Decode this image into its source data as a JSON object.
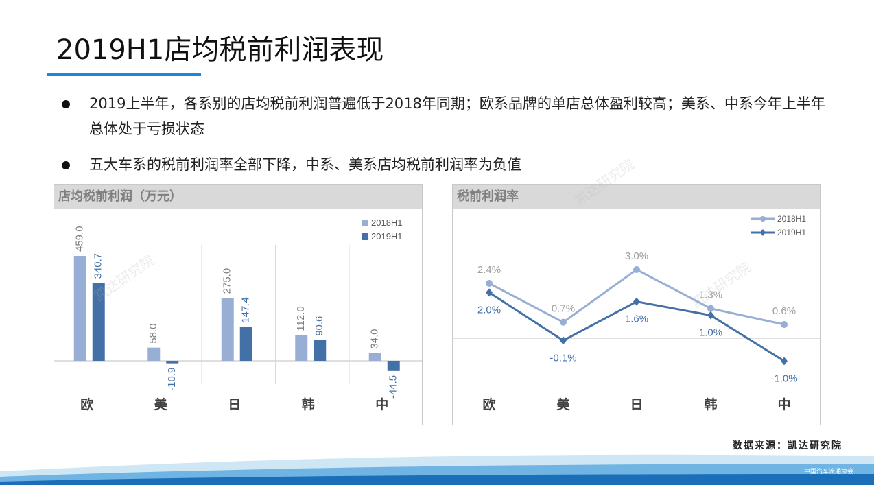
{
  "title": "2019H1店均税前利润表现",
  "bullets": [
    "2019上半年，各系别的店均税前利润普遍低于2018年同期；欧系品牌的单店总体盈利较高；美系、中系今年上半年总体处于亏损状态",
    "五大车系的税前利润率全部下降，中系、美系店均税前利润率为负值"
  ],
  "source": "数据来源：凯达研究院",
  "watermark": "凯达研究院",
  "logo_text": "中国汽车流通协会",
  "colors": {
    "light": "#98aed4",
    "dark": "#4470a8",
    "accent": "#1e88d8"
  },
  "chart_data": [
    {
      "type": "bar",
      "title": "店均税前利润（万元）",
      "categories": [
        "欧",
        "美",
        "日",
        "韩",
        "中"
      ],
      "series": [
        {
          "name": "2018H1",
          "values": [
            459.0,
            58.0,
            275.0,
            112.0,
            34.0
          ]
        },
        {
          "name": "2019H1",
          "values": [
            340.7,
            -10.9,
            147.4,
            90.6,
            -44.5
          ]
        }
      ],
      "labels": {
        "2018H1": [
          "459.0",
          "58.0",
          "275.0",
          "112.0",
          "34.0"
        ],
        "2019H1": [
          "340.7",
          "-10.9",
          "147.4",
          "90.6",
          "-44.5"
        ]
      },
      "legend": "top-right"
    },
    {
      "type": "line",
      "title": "税前利润率",
      "categories": [
        "欧",
        "美",
        "日",
        "韩",
        "中"
      ],
      "series": [
        {
          "name": "2018H1",
          "values": [
            2.4,
            0.7,
            3.0,
            1.3,
            0.6
          ]
        },
        {
          "name": "2019H1",
          "values": [
            2.0,
            -0.1,
            1.6,
            1.0,
            -1.0
          ]
        }
      ],
      "labels": {
        "2018H1": [
          "2.4%",
          "0.7%",
          "3.0%",
          "1.3%",
          "0.6%"
        ],
        "2019H1": [
          "2.0%",
          "-0.1%",
          "1.6%",
          "1.0%",
          "-1.0%"
        ]
      },
      "legend": "top-right"
    }
  ]
}
